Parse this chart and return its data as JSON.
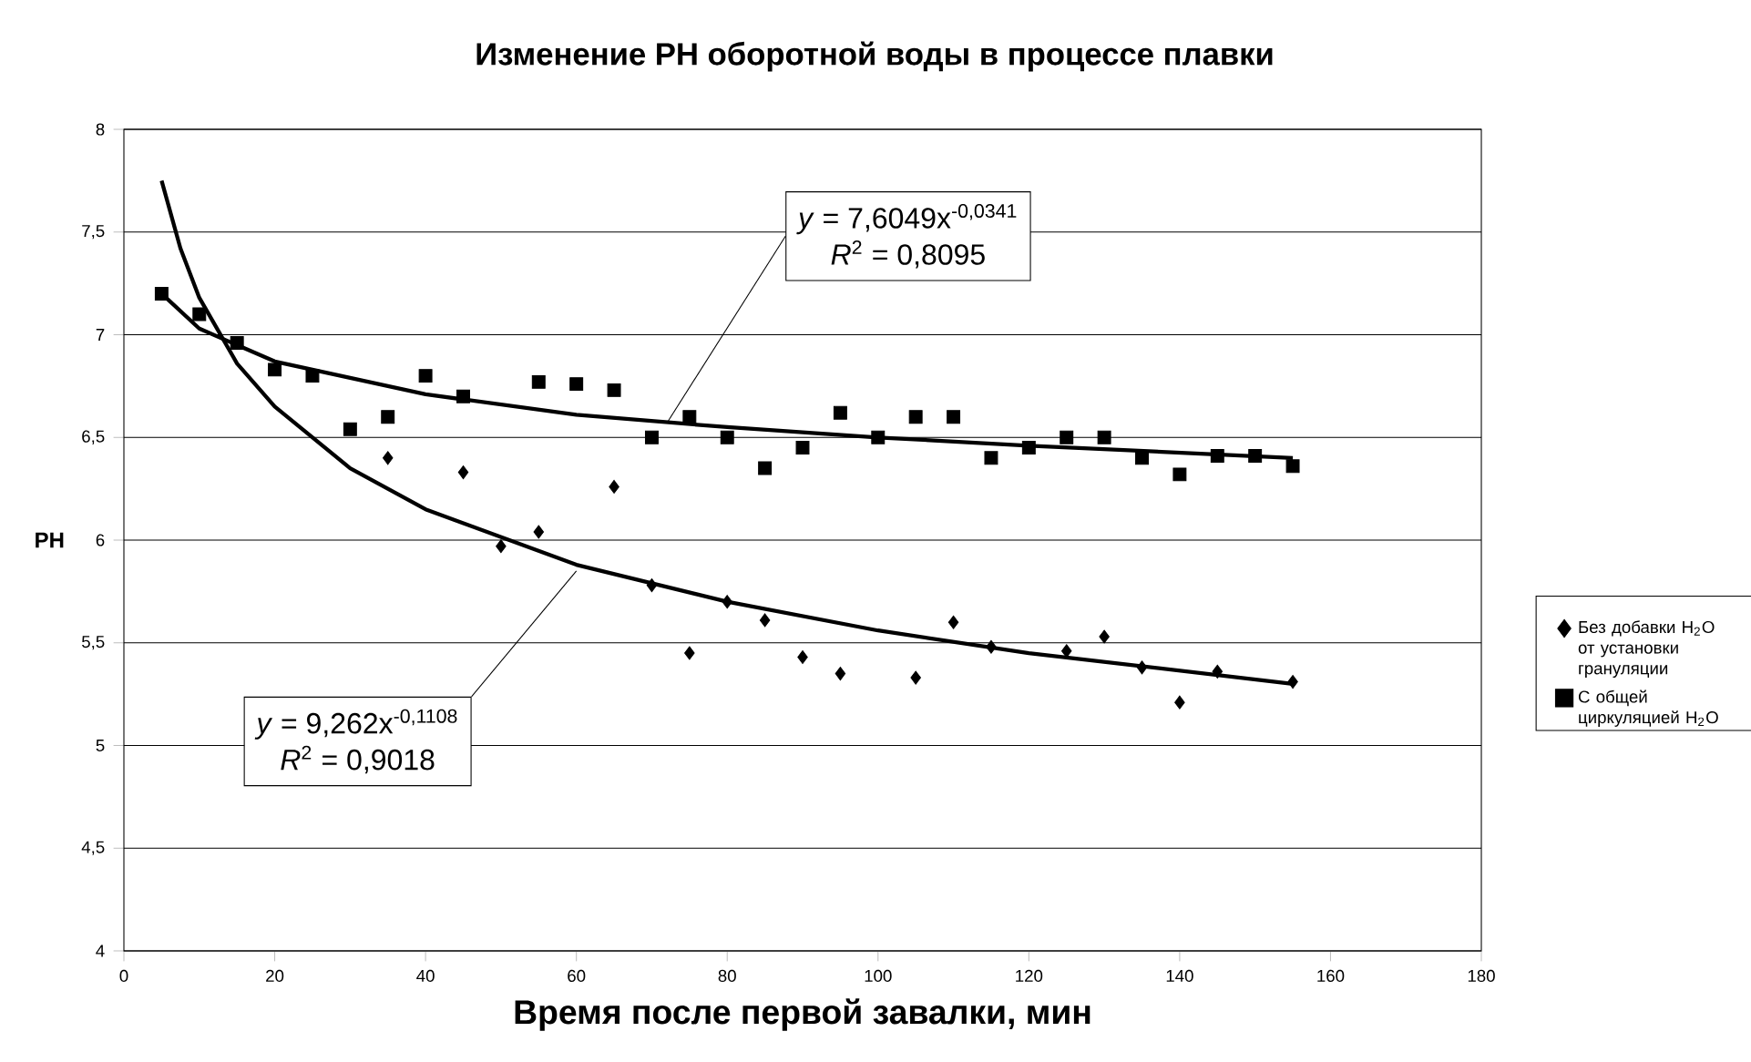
{
  "chart_data": {
    "type": "scatter",
    "title": "Изменение PH оборотной воды в процессе плавки",
    "xlabel": "Время после первой завалки, мин",
    "ylabel": "PH",
    "series": [
      {
        "name": "Без добавки H$_{2}$O от установки грануляции",
        "marker": "diamond",
        "color": "#000000",
        "x": [
          35,
          45,
          50,
          55,
          65,
          70,
          75,
          80,
          85,
          90,
          95,
          105,
          110,
          115,
          125,
          130,
          135,
          140,
          145,
          155
        ],
        "values": [
          6.4,
          6.33,
          5.97,
          6.04,
          6.26,
          5.78,
          5.45,
          5.7,
          5.61,
          5.43,
          5.35,
          5.33,
          5.6,
          5.48,
          5.46,
          5.53,
          5.38,
          5.21,
          5.36,
          5.31
        ]
      },
      {
        "name": "С общей циркуляцией H$_{2}$O",
        "marker": "square",
        "color": "#000000",
        "x": [
          5,
          10,
          15,
          20,
          25,
          30,
          35,
          40,
          45,
          55,
          60,
          65,
          70,
          75,
          80,
          85,
          90,
          95,
          100,
          105,
          110,
          115,
          120,
          125,
          130,
          135,
          140,
          145,
          150,
          155
        ],
        "values": [
          7.2,
          7.1,
          6.96,
          6.83,
          6.8,
          6.54,
          6.6,
          6.8,
          6.7,
          6.77,
          6.76,
          6.73,
          6.5,
          6.6,
          6.5,
          6.35,
          6.45,
          6.62,
          6.5,
          6.6,
          6.6,
          6.4,
          6.45,
          6.5,
          6.5,
          6.4,
          6.32,
          6.41,
          6.41,
          6.36
        ]
      },
      {
        "type": "line",
        "marker": "none",
        "color": "#000000",
        "x": [
          5,
          7.5,
          10,
          15,
          20,
          30,
          40,
          60,
          80,
          100,
          120,
          155
        ],
        "values": [
          7.75,
          7.42,
          7.18,
          6.86,
          6.65,
          6.35,
          6.15,
          5.88,
          5.7,
          5.56,
          5.45,
          5.3
        ]
      },
      {
        "type": "line",
        "marker": "none",
        "color": "#000000",
        "x": [
          5,
          10,
          20,
          40,
          60,
          80,
          100,
          120,
          155
        ],
        "values": [
          7.2,
          7.03,
          6.87,
          6.71,
          6.61,
          6.55,
          6.5,
          6.46,
          6.4
        ]
      }
    ],
    "xlim": [
      0,
      180
    ],
    "xticks": [
      0,
      20,
      40,
      60,
      80,
      100,
      120,
      140,
      160,
      180
    ],
    "ylim": [
      4,
      8
    ],
    "yticks": [
      4,
      {
        "value": 4.5,
        "label": "4,5"
      },
      5,
      {
        "value": 5.5,
        "label": "5,5"
      },
      6,
      {
        "value": 6.5,
        "label": "6,5"
      },
      7,
      {
        "value": 7.5,
        "label": "7,5"
      },
      8
    ],
    "grid": "y",
    "legend": "right",
    "annotations": [
      {
        "text": "*y* = 7,6049x$^{-0,0341}$",
        "x": 72,
        "y": 6.57
      },
      "*R*$^{2}$ = 0,8095",
      {
        "text": "*y* = 9,262x$^{-0,1108}$",
        "x": 60,
        "y": 5.85
      },
      "*R*$^{2}$ = 0,9018"
    ]
  }
}
